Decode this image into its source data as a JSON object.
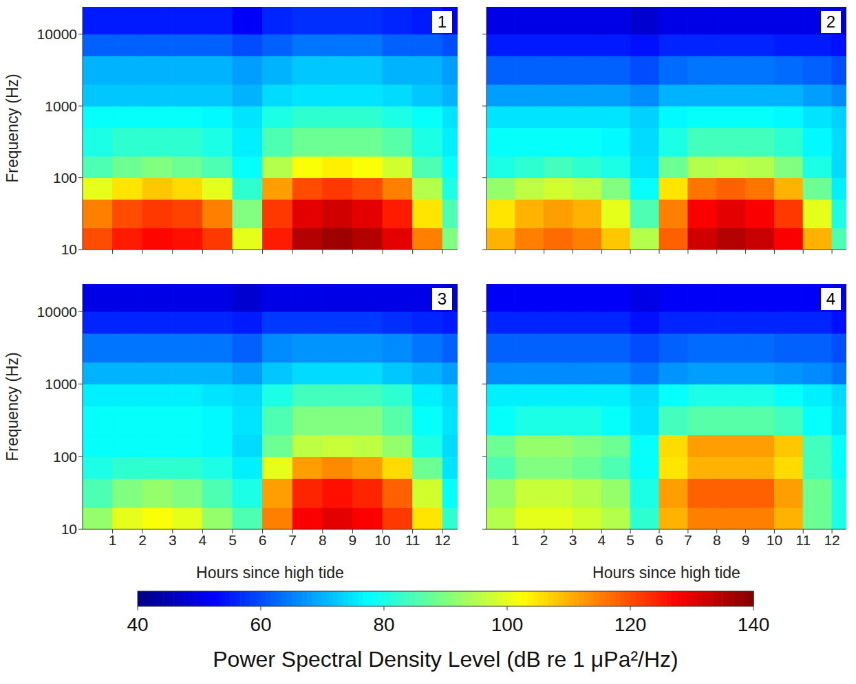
{
  "chart_data": [
    {
      "type": "heatmap",
      "title": "1",
      "y_label": "Frequency (Hz)",
      "tick_labels": "y",
      "log": "y",
      "xlim": [
        0,
        12.5
      ],
      "xticks": [
        1,
        2,
        3,
        4,
        5,
        6,
        7,
        8,
        9,
        10,
        11,
        12
      ],
      "ylim": [
        10,
        24000
      ],
      "yticks": [
        10,
        100,
        1000,
        10000
      ],
      "x_edges": [
        0,
        1,
        2,
        3,
        4,
        5,
        6,
        7,
        8,
        9,
        10,
        11,
        12,
        12.5
      ],
      "y_edges": [
        10,
        20,
        50,
        100,
        200,
        500,
        1000,
        2000,
        5000,
        10000,
        24000
      ],
      "cells": [
        [
          120,
          125,
          127,
          126,
          122,
          100,
          125,
          135,
          137,
          135,
          130,
          115,
          90
        ],
        [
          115,
          120,
          122,
          121,
          115,
          90,
          122,
          130,
          132,
          130,
          125,
          105,
          85
        ],
        [
          100,
          105,
          108,
          106,
          100,
          82,
          112,
          120,
          122,
          120,
          115,
          95,
          80
        ],
        [
          85,
          88,
          90,
          88,
          85,
          78,
          95,
          102,
          104,
          102,
          98,
          85,
          78
        ],
        [
          80,
          82,
          82,
          82,
          80,
          76,
          85,
          88,
          88,
          88,
          86,
          80,
          76
        ],
        [
          78,
          78,
          78,
          78,
          77,
          75,
          80,
          82,
          82,
          82,
          80,
          78,
          75
        ],
        [
          72,
          72,
          72,
          72,
          72,
          70,
          74,
          75,
          75,
          75,
          74,
          72,
          70
        ],
        [
          70,
          70,
          70,
          70,
          70,
          68,
          70,
          72,
          72,
          72,
          70,
          70,
          68
        ],
        [
          62,
          62,
          62,
          62,
          62,
          60,
          62,
          64,
          64,
          64,
          62,
          62,
          60
        ],
        [
          55,
          55,
          55,
          55,
          55,
          52,
          56,
          57,
          57,
          57,
          56,
          55,
          52
        ]
      ]
    },
    {
      "type": "heatmap",
      "title": "2",
      "tick_labels": false,
      "log": "y",
      "xlim": [
        0,
        12.5
      ],
      "xticks": [
        1,
        2,
        3,
        4,
        5,
        6,
        7,
        8,
        9,
        10,
        11,
        12
      ],
      "ylim": [
        10,
        24000
      ],
      "yticks": [
        10,
        100,
        1000,
        10000
      ],
      "x_edges": [
        0,
        1,
        2,
        3,
        4,
        5,
        6,
        7,
        8,
        9,
        10,
        11,
        12,
        12.5
      ],
      "y_edges": [
        10,
        20,
        50,
        100,
        200,
        500,
        1000,
        2000,
        5000,
        10000,
        24000
      ],
      "cells": [
        [
          110,
          115,
          117,
          115,
          108,
          95,
          118,
          132,
          135,
          133,
          128,
          110,
          85
        ],
        [
          105,
          110,
          112,
          110,
          100,
          85,
          115,
          128,
          130,
          128,
          122,
          100,
          80
        ],
        [
          92,
          96,
          98,
          96,
          90,
          78,
          105,
          116,
          118,
          116,
          110,
          88,
          76
        ],
        [
          80,
          82,
          84,
          82,
          80,
          75,
          88,
          95,
          96,
          95,
          90,
          80,
          74
        ],
        [
          78,
          78,
          78,
          78,
          77,
          74,
          80,
          84,
          84,
          84,
          82,
          77,
          74
        ],
        [
          75,
          75,
          75,
          75,
          75,
          73,
          77,
          78,
          78,
          78,
          77,
          75,
          73
        ],
        [
          68,
          68,
          68,
          68,
          68,
          66,
          70,
          70,
          70,
          70,
          70,
          68,
          66
        ],
        [
          62,
          62,
          62,
          62,
          62,
          60,
          63,
          64,
          64,
          64,
          63,
          62,
          60
        ],
        [
          55,
          55,
          55,
          55,
          55,
          54,
          56,
          56,
          56,
          56,
          55,
          55,
          54
        ],
        [
          50,
          50,
          50,
          50,
          50,
          48,
          50,
          50,
          50,
          50,
          50,
          50,
          48
        ]
      ]
    },
    {
      "type": "heatmap",
      "title": "3",
      "x_label": "Hours since high tide",
      "y_label": "Frequency (Hz)",
      "tick_labels": true,
      "log": "y",
      "xlim": [
        0,
        12.5
      ],
      "xticks": [
        1,
        2,
        3,
        4,
        5,
        6,
        7,
        8,
        9,
        10,
        11,
        12
      ],
      "ylim": [
        10,
        24000
      ],
      "yticks": [
        10,
        100,
        1000,
        10000
      ],
      "x_edges": [
        0,
        1,
        2,
        3,
        4,
        5,
        6,
        7,
        8,
        9,
        10,
        11,
        12,
        12.5
      ],
      "y_edges": [
        10,
        20,
        50,
        100,
        200,
        500,
        1000,
        2000,
        5000,
        10000,
        24000
      ],
      "cells": [
        [
          92,
          100,
          102,
          100,
          92,
          85,
          115,
          128,
          130,
          128,
          122,
          105,
          82
        ],
        [
          85,
          90,
          92,
          90,
          85,
          80,
          112,
          124,
          126,
          124,
          118,
          98,
          78
        ],
        [
          80,
          82,
          82,
          82,
          80,
          76,
          100,
          112,
          114,
          112,
          106,
          88,
          75
        ],
        [
          78,
          78,
          78,
          78,
          77,
          74,
          88,
          96,
          97,
          96,
          92,
          80,
          74
        ],
        [
          78,
          78,
          78,
          78,
          77,
          75,
          85,
          90,
          90,
          90,
          86,
          78,
          75
        ],
        [
          76,
          76,
          76,
          76,
          75,
          74,
          80,
          84,
          84,
          84,
          82,
          76,
          74
        ],
        [
          70,
          70,
          70,
          70,
          70,
          68,
          72,
          74,
          74,
          74,
          72,
          70,
          68
        ],
        [
          64,
          64,
          64,
          64,
          64,
          62,
          66,
          67,
          67,
          67,
          66,
          64,
          62
        ],
        [
          56,
          56,
          56,
          56,
          56,
          55,
          58,
          58,
          58,
          58,
          57,
          56,
          55
        ],
        [
          50,
          50,
          50,
          50,
          50,
          48,
          50,
          50,
          50,
          50,
          50,
          50,
          48
        ]
      ]
    },
    {
      "type": "heatmap",
      "title": "4",
      "x_label": "Hours since high tide",
      "tick_labels": "x",
      "log": "y",
      "xlim": [
        0,
        12.5
      ],
      "xticks": [
        1,
        2,
        3,
        4,
        5,
        6,
        7,
        8,
        9,
        10,
        11,
        12
      ],
      "ylim": [
        10,
        24000
      ],
      "yticks": [
        10,
        100,
        1000,
        10000
      ],
      "x_edges": [
        0,
        1,
        2,
        3,
        4,
        5,
        6,
        7,
        8,
        9,
        10,
        11,
        12,
        12.5
      ],
      "y_edges": [
        10,
        20,
        50,
        100,
        200,
        500,
        1000,
        2000,
        5000,
        10000,
        24000
      ],
      "cells": [
        [
          95,
          100,
          100,
          98,
          95,
          82,
          110,
          115,
          115,
          115,
          110,
          88,
          80
        ],
        [
          92,
          97,
          97,
          95,
          92,
          80,
          112,
          118,
          118,
          118,
          112,
          88,
          80
        ],
        [
          85,
          90,
          90,
          88,
          85,
          78,
          105,
          110,
          110,
          110,
          106,
          84,
          78
        ],
        [
          88,
          92,
          92,
          90,
          88,
          78,
          106,
          112,
          112,
          112,
          108,
          84,
          78
        ],
        [
          78,
          80,
          80,
          80,
          78,
          75,
          84,
          86,
          86,
          86,
          84,
          78,
          75
        ],
        [
          76,
          76,
          76,
          76,
          76,
          74,
          78,
          80,
          80,
          80,
          78,
          76,
          74
        ],
        [
          66,
          66,
          66,
          66,
          66,
          64,
          67,
          68,
          68,
          68,
          67,
          66,
          64
        ],
        [
          62,
          62,
          62,
          62,
          62,
          60,
          62,
          63,
          63,
          63,
          62,
          62,
          60
        ],
        [
          56,
          56,
          56,
          56,
          56,
          54,
          56,
          56,
          56,
          56,
          56,
          56,
          54
        ],
        [
          52,
          52,
          52,
          52,
          52,
          50,
          52,
          52,
          52,
          52,
          52,
          52,
          50
        ]
      ]
    }
  ],
  "colorbar": {
    "range": [
      40,
      140
    ],
    "ticks": [
      40,
      60,
      80,
      100,
      120,
      140
    ],
    "label": "Power Spectral Density Level (dB re 1 μPa²/Hz)"
  }
}
